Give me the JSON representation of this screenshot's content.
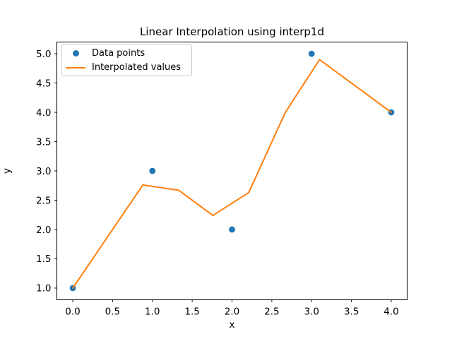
{
  "figure": {
    "background": "#ffffff",
    "text_color": "#000000",
    "spine_color": "#000000"
  },
  "chart_data": {
    "type": "line",
    "title": "Linear Interpolation using interp1d",
    "xlabel": "x",
    "ylabel": "y",
    "xlim": [
      -0.2,
      4.2
    ],
    "ylim": [
      0.8,
      5.2
    ],
    "x_ticks": [
      0.0,
      0.5,
      1.0,
      1.5,
      2.0,
      2.5,
      3.0,
      3.5,
      4.0
    ],
    "y_ticks": [
      1.0,
      1.5,
      2.0,
      2.5,
      3.0,
      3.5,
      4.0,
      4.5,
      5.0
    ],
    "tick_label_decimals": 1,
    "grid": false,
    "legend": {
      "position": "upper left",
      "entries": [
        "Data points",
        "Interpolated values"
      ]
    },
    "series": [
      {
        "name": "Data points",
        "kind": "scatter",
        "color": "#1f77b4",
        "marker": "circle",
        "x": [
          0,
          1,
          2,
          3,
          4
        ],
        "y": [
          1,
          3,
          2,
          5,
          4
        ]
      },
      {
        "name": "Interpolated values",
        "kind": "line",
        "color": "#ff7f0e",
        "x": [
          0.0,
          0.88,
          1.33,
          1.76,
          2.21,
          2.67,
          3.1,
          4.0
        ],
        "y": [
          1.0,
          2.76,
          2.67,
          2.24,
          2.63,
          4.0,
          4.9,
          4.0
        ]
      }
    ]
  }
}
